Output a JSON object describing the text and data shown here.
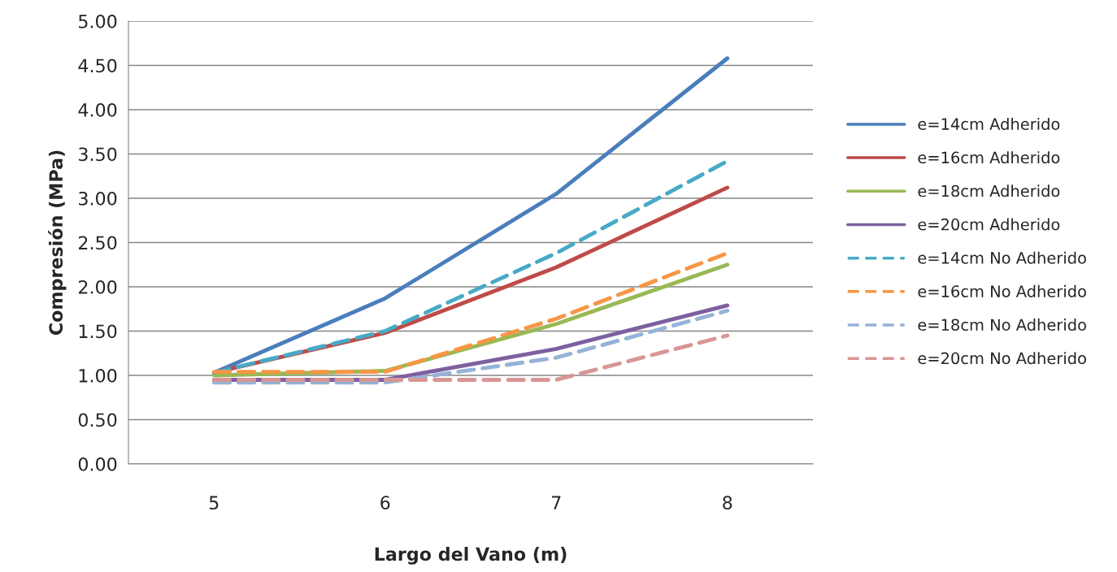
{
  "chart_data": {
    "type": "line",
    "xlabel": "Largo del Vano (m)",
    "ylabel": "Compresión (MPa)",
    "categories": [
      "5",
      "6",
      "7",
      "8"
    ],
    "series": [
      {
        "name": "e=14cm Adherido",
        "color": "#4a7ebb",
        "line_style": "solid",
        "values": [
          1.03,
          1.87,
          3.05,
          4.58
        ]
      },
      {
        "name": "e=16cm Adherido",
        "color": "#be4b48",
        "line_style": "solid",
        "values": [
          1.03,
          1.48,
          2.22,
          3.12
        ]
      },
      {
        "name": "e=18cm Adherido",
        "color": "#98b954",
        "line_style": "solid",
        "values": [
          1.0,
          1.05,
          1.58,
          2.25
        ]
      },
      {
        "name": "e=20cm Adherido",
        "color": "#7d60a0",
        "line_style": "solid",
        "values": [
          0.95,
          0.95,
          1.3,
          1.79
        ]
      },
      {
        "name": "e=14cm No Adherido",
        "color": "#46aac5",
        "line_style": "dashed",
        "values": [
          1.03,
          1.5,
          2.38,
          3.42
        ]
      },
      {
        "name": "e=16cm No Adherido",
        "color": "#f79646",
        "line_style": "dashed",
        "values": [
          1.04,
          1.04,
          1.64,
          2.38
        ]
      },
      {
        "name": "e=18cm No Adherido",
        "color": "#95b3d7",
        "line_style": "dashed",
        "values": [
          0.92,
          0.92,
          1.2,
          1.73
        ]
      },
      {
        "name": "e=20cm No Adherido",
        "color": "#d99694",
        "line_style": "dashed",
        "values": [
          0.95,
          0.95,
          0.95,
          1.45
        ]
      }
    ],
    "ylim": [
      0,
      5
    ],
    "yticks": [
      {
        "value": 0,
        "label": "0.00"
      },
      {
        "value": 0.5,
        "label": "0.50"
      },
      {
        "value": 1,
        "label": "1.00"
      },
      {
        "value": 1.5,
        "label": "1.50"
      },
      {
        "value": 2,
        "label": "2.00"
      },
      {
        "value": 2.5,
        "label": "2.50"
      },
      {
        "value": 3,
        "label": "3.00"
      },
      {
        "value": 3.5,
        "label": "3.50"
      },
      {
        "value": 4,
        "label": "4.00"
      },
      {
        "value": 4.5,
        "label": "4.50"
      },
      {
        "value": 5,
        "label": "5.00"
      }
    ],
    "grid": "y",
    "legend": "right"
  }
}
